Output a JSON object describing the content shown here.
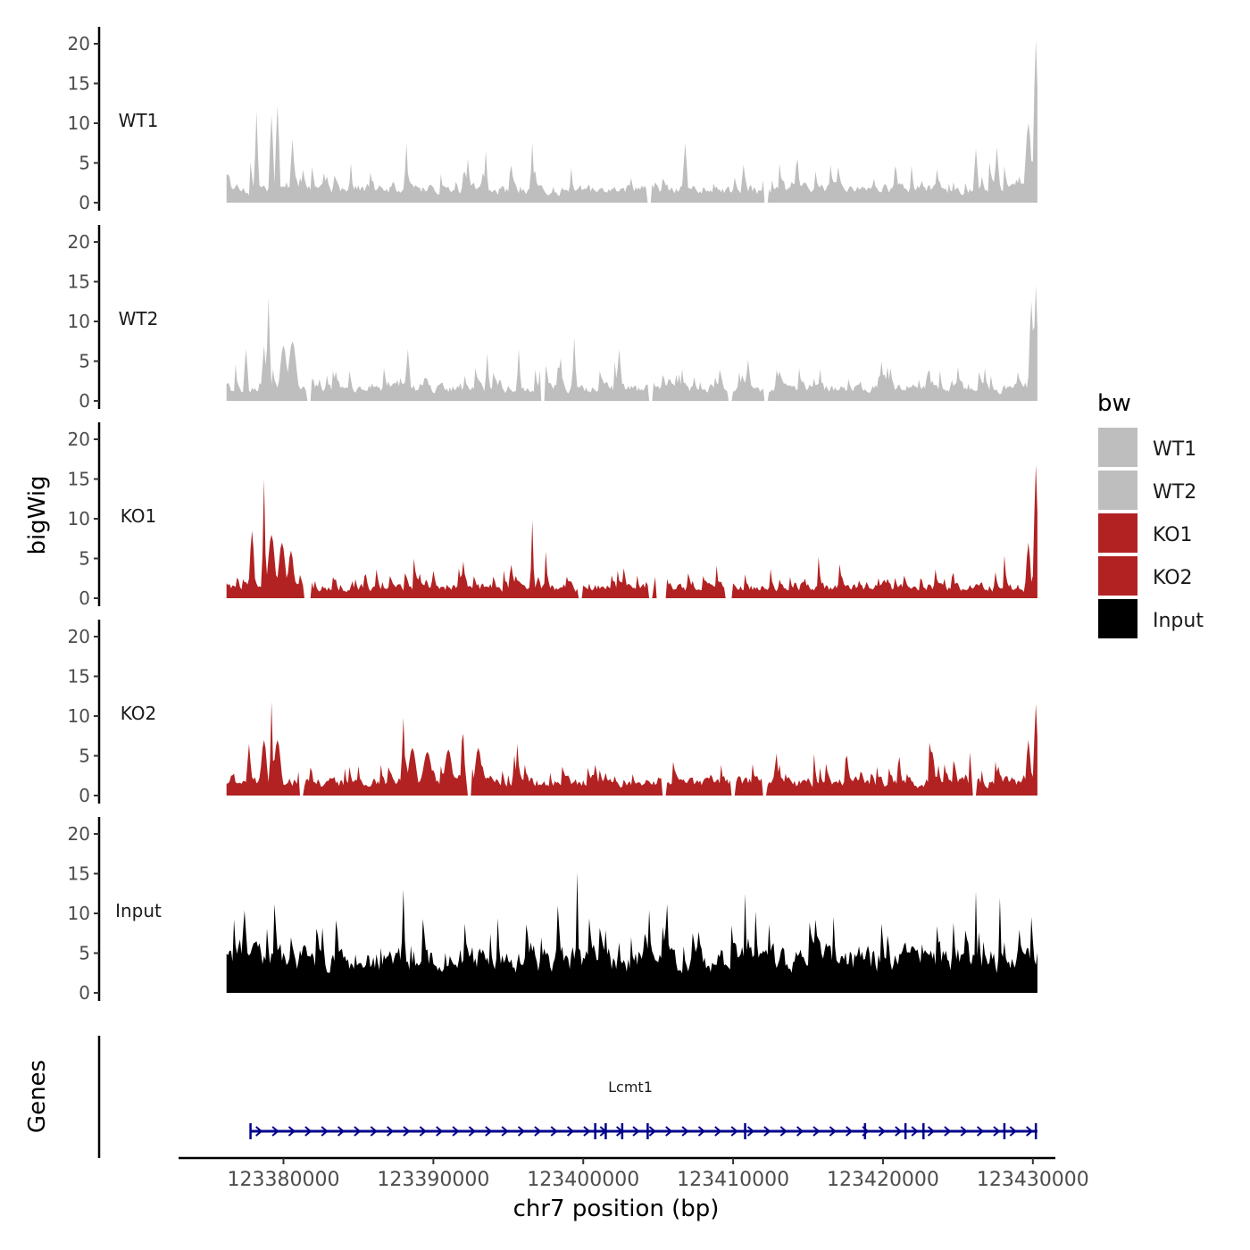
{
  "chart_data": {
    "type": "area",
    "title": "",
    "chromosome": "chr7",
    "xlabel": "chr7 position (bp)",
    "ylabel": "bigWig",
    "genes_label": "Genes",
    "xlim": [
      123373000,
      123431500
    ],
    "track_xrange": [
      123376200,
      123430300
    ],
    "ylim": [
      0,
      21
    ],
    "y_ticks": [
      "0",
      "5",
      "10",
      "15",
      "20"
    ],
    "x_ticks": [
      {
        "value": 123380000,
        "label": "123380000"
      },
      {
        "value": 123390000,
        "label": "123390000"
      },
      {
        "value": 123400000,
        "label": "123400000"
      },
      {
        "value": 123410000,
        "label": "123410000"
      },
      {
        "value": 123420000,
        "label": "123420000"
      },
      {
        "value": 123430000,
        "label": "123430000"
      }
    ],
    "legend": {
      "title": "bw",
      "position": "right",
      "entries": [
        {
          "label": "WT1",
          "color": "#bebebe"
        },
        {
          "label": "WT2",
          "color": "#bebebe"
        },
        {
          "label": "KO1",
          "color": "#b22222"
        },
        {
          "label": "KO2",
          "color": "#b22222"
        },
        {
          "label": "Input",
          "color": "#000000"
        }
      ]
    },
    "series": [
      {
        "name": "WT1",
        "color": "#bebebe",
        "seed": 11,
        "base": 2.2,
        "noise": 2.6,
        "peaks": [
          [
            123378200,
            11.5,
            120
          ],
          [
            123379200,
            11,
            150
          ],
          [
            123379600,
            12.2,
            150
          ],
          [
            123380600,
            8,
            150
          ],
          [
            123384500,
            5,
            120
          ],
          [
            123388200,
            7.5,
            120
          ],
          [
            123393500,
            6.5,
            120
          ],
          [
            123396600,
            7.5,
            120
          ],
          [
            123406800,
            7.5,
            150
          ],
          [
            123426200,
            6.8,
            150
          ],
          [
            123427600,
            7,
            150
          ],
          [
            123429700,
            10,
            250
          ],
          [
            123430200,
            20.5,
            170
          ]
        ],
        "gaps": [
          [
            123404300,
            123404500
          ],
          [
            123412100,
            123412300
          ]
        ]
      },
      {
        "name": "WT2",
        "color": "#bebebe",
        "seed": 23,
        "base": 2.1,
        "noise": 2.3,
        "peaks": [
          [
            123377500,
            6.5,
            150
          ],
          [
            123378700,
            7,
            150
          ],
          [
            123379000,
            13,
            120
          ],
          [
            123380000,
            7,
            300
          ],
          [
            123380600,
            7.5,
            350
          ],
          [
            123388300,
            6.5,
            150
          ],
          [
            123393600,
            6,
            120
          ],
          [
            123395700,
            6.5,
            120
          ],
          [
            123399400,
            8,
            120
          ],
          [
            123402400,
            6.5,
            150
          ],
          [
            123411000,
            5.2,
            150
          ],
          [
            123419900,
            5,
            150
          ],
          [
            123429900,
            12.5,
            170
          ],
          [
            123430200,
            14.5,
            150
          ]
        ],
        "gaps": [
          [
            123381600,
            123381800
          ],
          [
            123397200,
            123397400
          ],
          [
            123404400,
            123404600
          ],
          [
            123409700,
            123409900
          ],
          [
            123412100,
            123412300
          ]
        ]
      },
      {
        "name": "KO1",
        "color": "#b22222",
        "seed": 37,
        "base": 1.8,
        "noise": 2.2,
        "peaks": [
          [
            123377900,
            8.5,
            180
          ],
          [
            123378700,
            15,
            100
          ],
          [
            123379200,
            8,
            300
          ],
          [
            123379900,
            7,
            300
          ],
          [
            123380500,
            6,
            250
          ],
          [
            123396600,
            9.8,
            100
          ],
          [
            123429700,
            7,
            180
          ],
          [
            123430200,
            16.8,
            150
          ]
        ],
        "gaps": [
          [
            123381400,
            123381800
          ],
          [
            123399700,
            123399900
          ],
          [
            123404400,
            123404600
          ],
          [
            123404900,
            123405500
          ],
          [
            123409500,
            123409900
          ]
        ]
      },
      {
        "name": "KO2",
        "color": "#b22222",
        "seed": 53,
        "base": 2.2,
        "noise": 2.4,
        "peaks": [
          [
            123377700,
            6.5,
            150
          ],
          [
            123378700,
            7,
            250
          ],
          [
            123379200,
            11.8,
            100
          ],
          [
            123379600,
            7,
            300
          ],
          [
            123388000,
            9.8,
            120
          ],
          [
            123388600,
            6,
            350
          ],
          [
            123389600,
            5.5,
            400
          ],
          [
            123391000,
            5.8,
            350
          ],
          [
            123392000,
            7.8,
            120
          ],
          [
            123393000,
            6,
            300
          ],
          [
            123429700,
            7,
            180
          ],
          [
            123430200,
            11.5,
            150
          ]
        ],
        "gaps": [
          [
            123381100,
            123381300
          ],
          [
            123392300,
            123392500
          ],
          [
            123405300,
            123405500
          ],
          [
            123409900,
            123410100
          ],
          [
            123412000,
            123412200
          ],
          [
            123426000,
            123426200
          ]
        ]
      },
      {
        "name": "Input",
        "color": "#000000",
        "seed": 71,
        "base": 5.6,
        "noise": 5.2,
        "peaks": [
          [
            123388000,
            13,
            120
          ],
          [
            123399600,
            15.2,
            100
          ],
          [
            123398300,
            11,
            120
          ],
          [
            123410800,
            12.5,
            100
          ],
          [
            123426200,
            12.8,
            100
          ],
          [
            123427800,
            12,
            100
          ],
          [
            123430000,
            6.5,
            150
          ]
        ],
        "gaps": []
      }
    ],
    "gene_track": {
      "gene": "Lcmt1",
      "strand": "+",
      "start": 123377800,
      "end": 123430300,
      "color": "#00008b",
      "exons": [
        123377800,
        123400800,
        123401500,
        123402600,
        123404300,
        123410800,
        123418800,
        123421500,
        123422700,
        123428100,
        123430200
      ]
    }
  }
}
